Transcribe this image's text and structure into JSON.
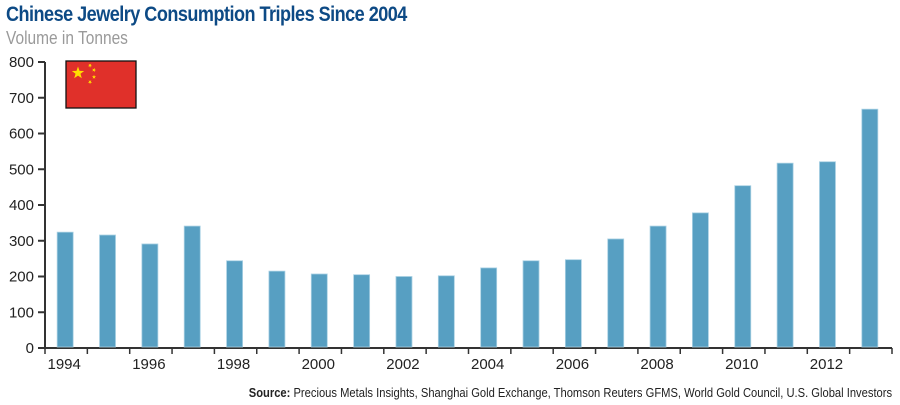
{
  "chart_data": {
    "type": "bar",
    "title": "Chinese Jewelry Consumption Triples Since 2004",
    "subtitle": "Volume in Tonnes",
    "xlabel": "",
    "ylabel": "Volume in Tonnes",
    "ylim": [
      0,
      800
    ],
    "yticks": [
      0,
      100,
      200,
      300,
      400,
      500,
      600,
      700,
      800
    ],
    "categories": [
      "1994",
      "1995",
      "1996",
      "1997",
      "1998",
      "1999",
      "2000",
      "2001",
      "2002",
      "2003",
      "2004",
      "2005",
      "2006",
      "2007",
      "2008",
      "2009",
      "2010",
      "2011",
      "2012",
      "2013"
    ],
    "xtick_labels": [
      "1994",
      "1996",
      "1998",
      "2000",
      "2002",
      "2004",
      "2006",
      "2008",
      "2010",
      "2012"
    ],
    "values": [
      324,
      316,
      291,
      341,
      244,
      215,
      207,
      205,
      200,
      202,
      224,
      244,
      247,
      305,
      341,
      378,
      454,
      517,
      521,
      668
    ],
    "series_color": "#579fc2",
    "grid": false,
    "legend": "none",
    "annotation": "china-flag",
    "source_label": "Source:",
    "source_text": "Precious Metals Insights, Shanghai Gold Exchange, Thomson Reuters GFMS, World Gold Council, U.S. Global Investors"
  },
  "colors": {
    "title": "#0d4a85",
    "subtitle": "#9a9a9a",
    "flag_red": "#e0302a",
    "flag_star": "#ffde00"
  }
}
